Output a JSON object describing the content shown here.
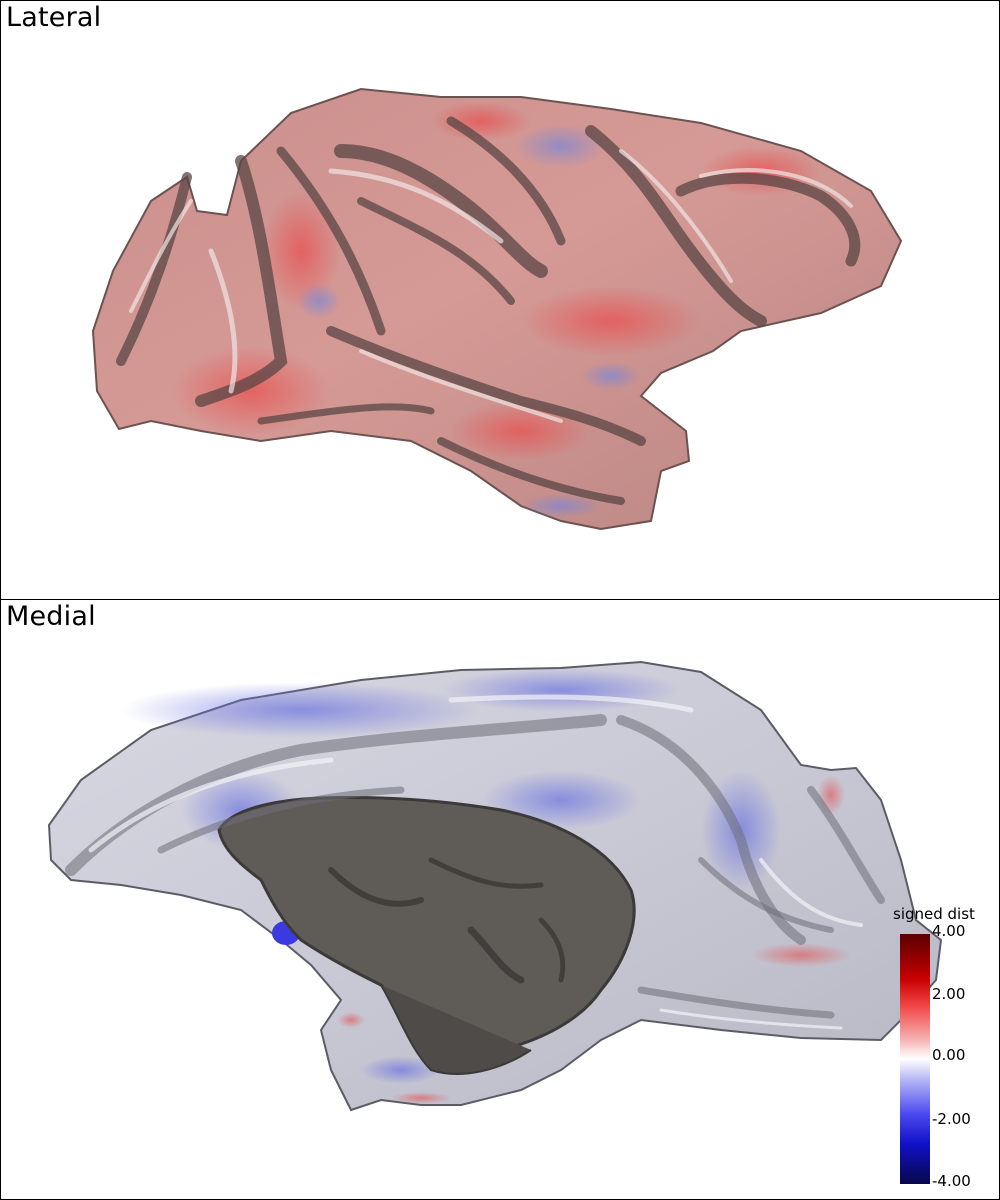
{
  "panels": {
    "top_title": "Lateral",
    "bottom_title": "Medial"
  },
  "colorbar": {
    "title": "signed dist",
    "ticks": [
      "4.00",
      "2.00",
      "0.00",
      "-2.00",
      "-4.00"
    ],
    "max_color": "#5b0000",
    "mid_color": "#ffffff",
    "min_color": "#08084a"
  }
}
